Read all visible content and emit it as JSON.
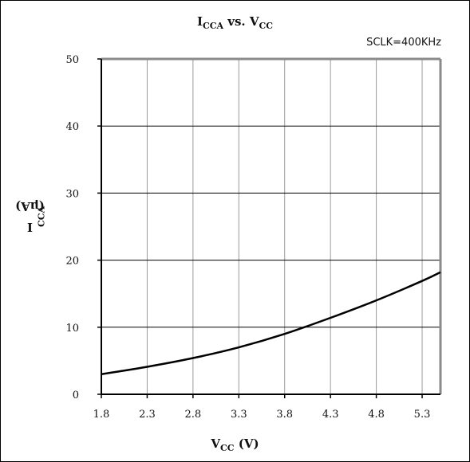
{
  "chart_data": {
    "type": "line",
    "title": {
      "main1": "I",
      "sub1": "CCA",
      "mid": " vs. V",
      "sub2": "CC"
    },
    "annotation": "SCLK=400KHz",
    "ylabel": {
      "main": "I",
      "sub": "CCA",
      "rest": " (μA)"
    },
    "xlabel": {
      "main": "V",
      "sub": "CC",
      "rest": " (V)"
    },
    "xlim": [
      1.8,
      5.5
    ],
    "ylim": [
      0,
      50
    ],
    "xticks": [
      "1.8",
      "2.3",
      "2.8",
      "3.3",
      "3.8",
      "4.3",
      "4.8",
      "5.3"
    ],
    "yticks": [
      "0",
      "10",
      "20",
      "30",
      "40",
      "50"
    ],
    "grid": true,
    "line_color": "#000000",
    "series": [
      {
        "x": [
          1.8,
          2.3,
          2.8,
          3.3,
          3.8,
          4.3,
          4.8,
          5.3,
          5.5
        ],
        "values": [
          3.0,
          4.1,
          5.4,
          7.0,
          9.0,
          11.4,
          14.0,
          16.9,
          18.2
        ]
      }
    ]
  }
}
